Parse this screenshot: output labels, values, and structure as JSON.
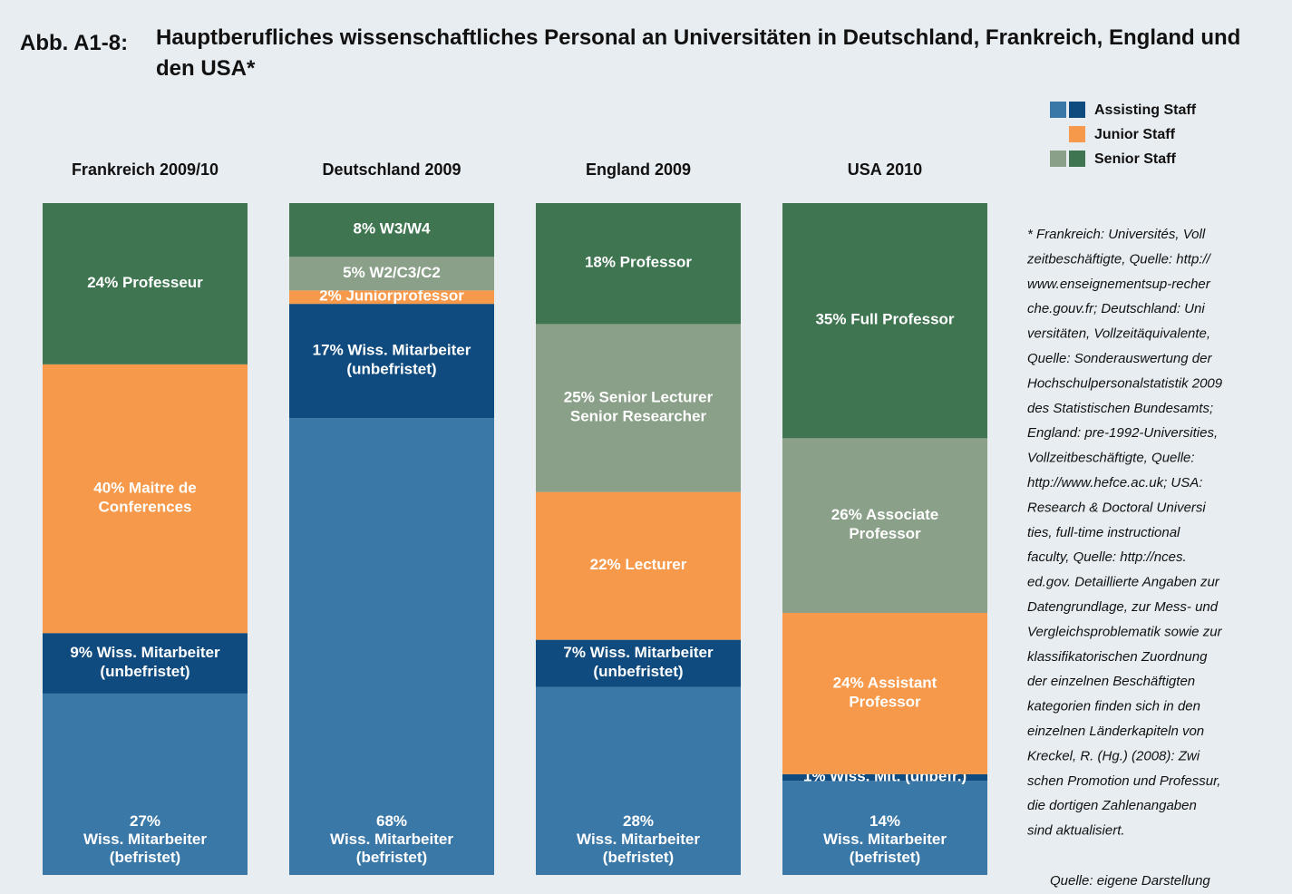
{
  "chart_data": {
    "type": "stacked_bar",
    "figure_label": "Abb. A1-8:",
    "title": "Hauptberufliches wissenschaftliches Personal an Universitäten in Deutschland, Frankreich, England und den USA*",
    "categories": [
      "Frankreich 2009/10",
      "Deutschland 2009",
      "England 2009",
      "USA 2010"
    ],
    "series": [
      {
        "color": "#3a78a8",
        "values": [
          27,
          68,
          28,
          14
        ],
        "value_labels": [
          "27%\nWiss. Mitarbeiter\n(befristet)",
          "68%\nWiss. Mitarbeiter\n(befristet)",
          "28%\nWiss. Mitarbeiter\n(befristet)",
          "14%\nWiss. Mitarbeiter\n(befristet)"
        ]
      },
      {
        "color": "#0f4b7f",
        "values": [
          9,
          17,
          7,
          1
        ],
        "value_labels": [
          "9% Wiss. Mitarbeiter\n(unbefristet)",
          "17% Wiss. Mitarbeiter\n(unbefristet)",
          "7% Wiss. Mitarbeiter\n(unbefristet)",
          "1% Wiss. Mit. (unbefr.)"
        ]
      },
      {
        "color": "#f7994a",
        "values": [
          40,
          2,
          22,
          24
        ],
        "value_labels": [
          "40% Maitre de\nConferences",
          "2% Juniorprofessor",
          "22% Lecturer",
          "24% Assistant\nProfessor"
        ]
      },
      {
        "color": "#8aa088",
        "values": [
          null,
          5,
          25,
          26
        ],
        "value_labels": [
          null,
          "5% W2/C3/C2",
          "25% Senior Lecturer\nSenior Researcher",
          "26% Associate\nProfessor"
        ]
      },
      {
        "color": "#3f7550",
        "values": [
          24,
          8,
          18,
          35
        ],
        "value_labels": [
          "24% Professeur",
          "8% W3/W4",
          "18% Professor",
          "35% Full Professor"
        ]
      }
    ],
    "legend": [
      {
        "name": "Assisting Staff",
        "colors": [
          "#3a78a8",
          "#0f4b7f"
        ]
      },
      {
        "name": "Junior Staff",
        "colors": [
          "#f7994a"
        ]
      },
      {
        "name": "Senior Staff",
        "colors": [
          "#8aa088",
          "#3f7550"
        ]
      }
    ],
    "note": [
      "*  Frankreich: Universités, Voll",
      "zeitbeschäftigte, Quelle: http://",
      "www.enseignementsup-recher",
      "che.gouv.fr; Deutschland: Uni",
      "versitäten, Vollzeitäquivalente,",
      "Quelle: Sonderauswertung der",
      "Hochschulpersonalstatistik 2009",
      "des Statistischen Bundesamts;",
      "England: pre-1992-Universities,",
      "Vollzeitbeschäftigte, Quelle:",
      "http://www.hefce.ac.uk; USA:",
      "Research & Doctoral Universi",
      "ties, full-time instructional",
      "faculty, Quelle: http://nces.",
      "ed.gov. Detaillierte Angaben zur",
      "Datengrundlage, zur Mess- und",
      "Vergleichsproblematik sowie zur",
      "klassifikatorischen Zuordnung",
      "der einzelnen Beschäftigten",
      "kategorien finden sich in den",
      "einzelnen Länderkapiteln von",
      "Kreckel, R. (Hg.) (2008): Zwi",
      "schen Promotion und Professur,",
      "die dortigen Zahlenangaben",
      "sind aktualisiert."
    ],
    "source": "Quelle: eigene Darstellung"
  }
}
